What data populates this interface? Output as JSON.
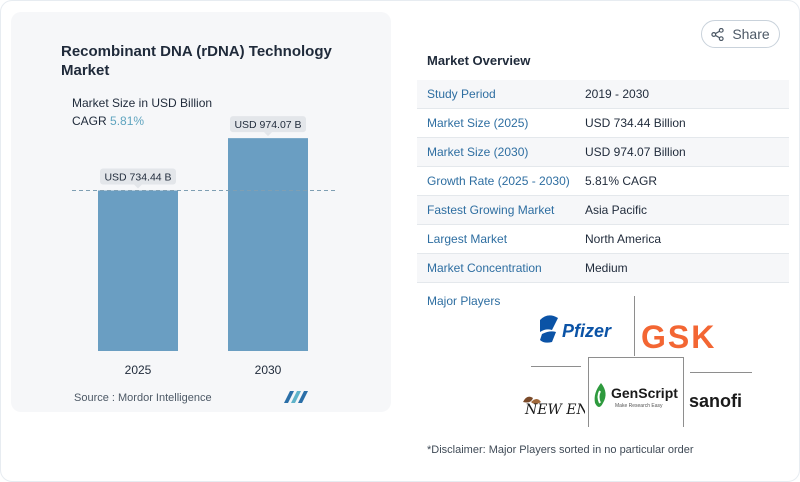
{
  "chart": {
    "title": "Recombinant DNA (rDNA) Technology Market",
    "subtitle": "Market Size in USD Billion",
    "cagr_label": "CAGR",
    "cagr_value": "5.81%",
    "source": "Source :  Mordor Intelligence"
  },
  "chart_data": {
    "type": "bar",
    "title": "Recombinant DNA (rDNA) Technology Market",
    "subtitle": "Market Size in USD Billion",
    "categories": [
      "2025",
      "2030"
    ],
    "values": [
      734.44,
      974.07
    ],
    "data_labels": [
      "USD 734.44 B",
      "USD 974.07 B"
    ],
    "bar_color": "#6a9ec2",
    "reference_line": "dashed at 2025 value",
    "ylim": [
      0,
      1080
    ]
  },
  "share": {
    "label": "Share"
  },
  "overview": {
    "title": "Market Overview",
    "rows": [
      {
        "label": "Study Period",
        "value": "2019 - 2030"
      },
      {
        "label": "Market Size (2025)",
        "value": "USD 734.44 Billion"
      },
      {
        "label": "Market Size (2030)",
        "value": "USD 974.07 Billion"
      },
      {
        "label": "Growth Rate (2025 - 2030)",
        "value": "5.81% CAGR"
      },
      {
        "label": "Fastest Growing Market",
        "value": "Asia Pacific"
      },
      {
        "label": "Largest Market",
        "value": "North America"
      },
      {
        "label": "Market Concentration",
        "value": "Medium"
      }
    ]
  },
  "players": {
    "title": "Major Players",
    "logos": [
      "Pfizer",
      "GSK",
      "NEW ENGLAND BioLabs Inc.",
      "GenScript",
      "sanofi"
    ],
    "genscript_tagline": "Make Research Easy"
  },
  "disclaimer": "*Disclaimer: Major Players sorted in no particular order",
  "colors": {
    "accent": "#2e6ea1",
    "cagr": "#5fa4bf",
    "bar": "#6a9ec2"
  }
}
